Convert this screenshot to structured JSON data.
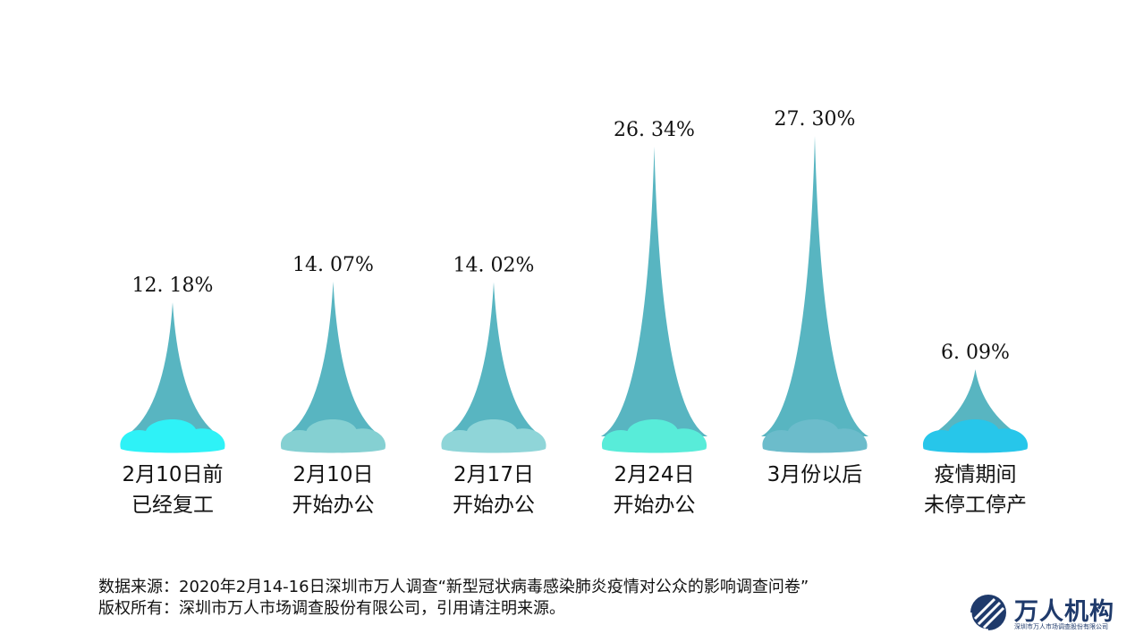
{
  "chart_data": {
    "type": "bar",
    "categories": [
      [
        "2月10日前",
        "已经复工"
      ],
      [
        "2月10日",
        "开始办公"
      ],
      [
        "2月17日",
        "开始办公"
      ],
      [
        "2月24日",
        "开始办公"
      ],
      [
        "3月份以后"
      ],
      [
        "疫情期间",
        "未停工停产"
      ]
    ],
    "values": [
      12.18,
      14.07,
      14.02,
      26.34,
      27.3,
      6.09
    ],
    "value_labels": [
      "12. 18%",
      "14. 07%",
      "14. 02%",
      "26. 34%",
      "27. 30%",
      "6. 09%"
    ],
    "cloud_colors": [
      "#2ef2f7",
      "#85d0d2",
      "#8fd5d8",
      "#58ecd9",
      "#6cbccb",
      "#27c6ea"
    ],
    "spike_color": "#58b5c1",
    "title": "",
    "xlabel": "",
    "ylabel": ""
  },
  "footer": {
    "source": "数据来源：2020年2月14-16日深圳市万人调查“新型冠状病毒感染肺炎疫情对公众的影响调查问卷”",
    "copyright": "版权所有：深圳市万人市场调查股份有限公司，引用请注明来源。"
  },
  "logo": {
    "name": "万人机构",
    "subtitle": "深圳市万人市场调查股份有限公司",
    "icon": "globe-icon",
    "color": "#1f3a6b"
  }
}
